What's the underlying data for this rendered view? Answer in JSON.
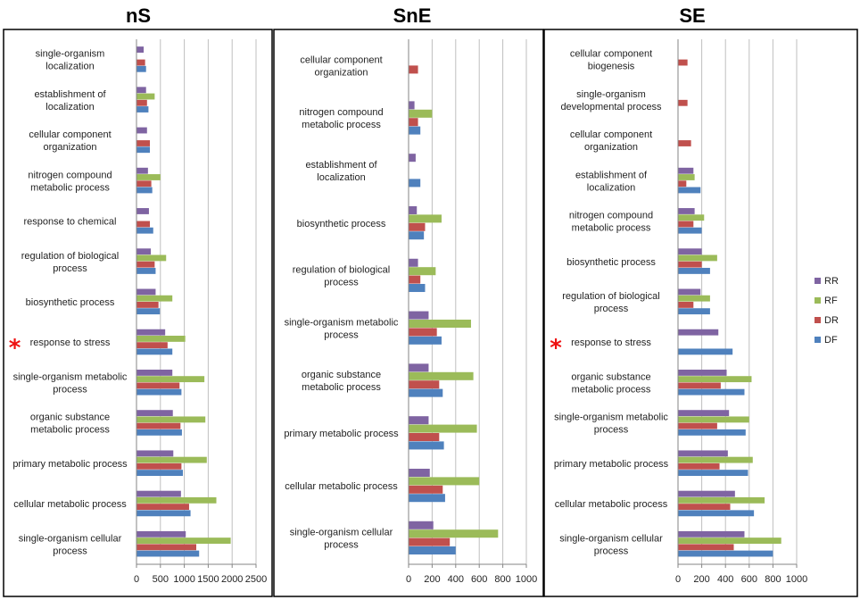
{
  "colors": {
    "RR": "#7f64a2",
    "RF": "#9bbb59",
    "DR": "#c0504d",
    "DF": "#4f81bd",
    "grid": "#bfbfbf",
    "border": "#000000",
    "axis": "#868686",
    "star": "#ee1111"
  },
  "legend": {
    "position": "right",
    "entries": [
      "RR",
      "RF",
      "DR",
      "DF"
    ]
  },
  "highlight_symbol": "*",
  "chart_data": [
    {
      "type": "bar",
      "orientation": "horizontal",
      "title": "nS",
      "xlim": [
        0,
        2500
      ],
      "xticks": [
        0,
        500,
        1000,
        1500,
        2000,
        2500
      ],
      "series_names": [
        "RR",
        "RF",
        "DR",
        "DF"
      ],
      "categories": [
        {
          "label": [
            "single-organism",
            "localization"
          ],
          "starred": false,
          "values": {
            "RR": 150,
            "RF": 0,
            "DR": 180,
            "DF": 200
          }
        },
        {
          "label": [
            "establishment of",
            "localization"
          ],
          "starred": false,
          "values": {
            "RR": 200,
            "RF": 380,
            "DR": 220,
            "DF": 250
          }
        },
        {
          "label": [
            "cellular component",
            "organization"
          ],
          "starred": false,
          "values": {
            "RR": 220,
            "RF": 0,
            "DR": 280,
            "DF": 280
          }
        },
        {
          "label": [
            "nitrogen compound",
            "metabolic process"
          ],
          "starred": false,
          "values": {
            "RR": 240,
            "RF": 500,
            "DR": 310,
            "DF": 330
          }
        },
        {
          "label": [
            "response to chemical"
          ],
          "starred": false,
          "values": {
            "RR": 260,
            "RF": 0,
            "DR": 280,
            "DF": 350
          }
        },
        {
          "label": [
            "regulation of biological",
            "process"
          ],
          "starred": false,
          "values": {
            "RR": 300,
            "RF": 620,
            "DR": 380,
            "DF": 400
          }
        },
        {
          "label": [
            "biosynthetic process"
          ],
          "starred": false,
          "values": {
            "RR": 400,
            "RF": 750,
            "DR": 460,
            "DF": 490
          }
        },
        {
          "label": [
            "response to stress"
          ],
          "starred": true,
          "values": {
            "RR": 600,
            "RF": 1020,
            "DR": 650,
            "DF": 750
          }
        },
        {
          "label": [
            "single-organism metabolic",
            "process"
          ],
          "starred": false,
          "values": {
            "RR": 750,
            "RF": 1420,
            "DR": 900,
            "DF": 940
          }
        },
        {
          "label": [
            "organic substance",
            "metabolic process"
          ],
          "starred": false,
          "values": {
            "RR": 760,
            "RF": 1440,
            "DR": 920,
            "DF": 950
          }
        },
        {
          "label": [
            "primary metabolic process"
          ],
          "starred": false,
          "values": {
            "RR": 770,
            "RF": 1470,
            "DR": 940,
            "DF": 970
          }
        },
        {
          "label": [
            "cellular metabolic process"
          ],
          "starred": false,
          "values": {
            "RR": 930,
            "RF": 1670,
            "DR": 1100,
            "DF": 1130
          }
        },
        {
          "label": [
            "single-organism cellular",
            "process"
          ],
          "starred": false,
          "values": {
            "RR": 1030,
            "RF": 1970,
            "DR": 1250,
            "DF": 1310
          }
        }
      ]
    },
    {
      "type": "bar",
      "orientation": "horizontal",
      "title": "SnE",
      "xlim": [
        0,
        1000
      ],
      "xticks": [
        0,
        200,
        400,
        600,
        800,
        1000
      ],
      "series_names": [
        "RR",
        "RF",
        "DR",
        "DF"
      ],
      "categories": [
        {
          "label": [
            "cellular component",
            "organization"
          ],
          "starred": false,
          "values": {
            "RR": 0,
            "RF": 0,
            "DR": 80,
            "DF": 0
          }
        },
        {
          "label": [
            "nitrogen compound",
            "metabolic process"
          ],
          "starred": false,
          "values": {
            "RR": 50,
            "RF": 200,
            "DR": 80,
            "DF": 100
          }
        },
        {
          "label": [
            "establishment of",
            "localization"
          ],
          "starred": false,
          "values": {
            "RR": 60,
            "RF": 0,
            "DR": 0,
            "DF": 100
          }
        },
        {
          "label": [
            "biosynthetic process"
          ],
          "starred": false,
          "values": {
            "RR": 70,
            "RF": 280,
            "DR": 140,
            "DF": 130
          }
        },
        {
          "label": [
            "regulation of biological",
            "process"
          ],
          "starred": false,
          "values": {
            "RR": 80,
            "RF": 230,
            "DR": 100,
            "DF": 140
          }
        },
        {
          "label": [
            "single-organism metabolic",
            "process"
          ],
          "starred": false,
          "values": {
            "RR": 170,
            "RF": 530,
            "DR": 240,
            "DF": 280
          }
        },
        {
          "label": [
            "organic substance",
            "metabolic process"
          ],
          "starred": false,
          "values": {
            "RR": 170,
            "RF": 550,
            "DR": 260,
            "DF": 290
          }
        },
        {
          "label": [
            "primary metabolic process"
          ],
          "starred": false,
          "values": {
            "RR": 170,
            "RF": 580,
            "DR": 260,
            "DF": 300
          }
        },
        {
          "label": [
            "cellular metabolic process"
          ],
          "starred": false,
          "values": {
            "RR": 180,
            "RF": 600,
            "DR": 290,
            "DF": 310
          }
        },
        {
          "label": [
            "single-organism cellular",
            "process"
          ],
          "starred": false,
          "values": {
            "RR": 210,
            "RF": 760,
            "DR": 350,
            "DF": 400
          }
        }
      ]
    },
    {
      "type": "bar",
      "orientation": "horizontal",
      "title": "SE",
      "xlim": [
        0,
        1000
      ],
      "xticks": [
        0,
        200,
        400,
        600,
        800,
        1000
      ],
      "series_names": [
        "RR",
        "RF",
        "DR",
        "DF"
      ],
      "categories": [
        {
          "label": [
            "cellular component",
            "biogenesis"
          ],
          "starred": false,
          "values": {
            "RR": 0,
            "RF": 0,
            "DR": 80,
            "DF": 0
          }
        },
        {
          "label": [
            "single-organism",
            "developmental process"
          ],
          "starred": false,
          "values": {
            "RR": 0,
            "RF": 0,
            "DR": 80,
            "DF": 0
          }
        },
        {
          "label": [
            "cellular component",
            "organization"
          ],
          "starred": false,
          "values": {
            "RR": 0,
            "RF": 0,
            "DR": 110,
            "DF": 0
          }
        },
        {
          "label": [
            "establishment of",
            "localization"
          ],
          "starred": false,
          "values": {
            "RR": 130,
            "RF": 140,
            "DR": 70,
            "DF": 190
          }
        },
        {
          "label": [
            "nitrogen compound",
            "metabolic process"
          ],
          "starred": false,
          "values": {
            "RR": 140,
            "RF": 220,
            "DR": 130,
            "DF": 200
          }
        },
        {
          "label": [
            "biosynthetic process"
          ],
          "starred": false,
          "values": {
            "RR": 200,
            "RF": 330,
            "DR": 200,
            "DF": 270
          }
        },
        {
          "label": [
            "regulation of biological",
            "process"
          ],
          "starred": false,
          "values": {
            "RR": 190,
            "RF": 270,
            "DR": 130,
            "DF": 270
          }
        },
        {
          "label": [
            "response to stress"
          ],
          "starred": true,
          "values": {
            "RR": 340,
            "RF": 0,
            "DR": 0,
            "DF": 460
          }
        },
        {
          "label": [
            "organic substance",
            "metabolic process"
          ],
          "starred": false,
          "values": {
            "RR": 410,
            "RF": 620,
            "DR": 360,
            "DF": 560
          }
        },
        {
          "label": [
            "single-organism metabolic",
            "process"
          ],
          "starred": false,
          "values": {
            "RR": 430,
            "RF": 600,
            "DR": 330,
            "DF": 570
          }
        },
        {
          "label": [
            "primary metabolic process"
          ],
          "starred": false,
          "values": {
            "RR": 420,
            "RF": 630,
            "DR": 350,
            "DF": 590
          }
        },
        {
          "label": [
            "cellular metabolic process"
          ],
          "starred": false,
          "values": {
            "RR": 480,
            "RF": 730,
            "DR": 440,
            "DF": 640
          }
        },
        {
          "label": [
            "single-organism cellular",
            "process"
          ],
          "starred": false,
          "values": {
            "RR": 560,
            "RF": 870,
            "DR": 470,
            "DF": 800
          }
        }
      ]
    }
  ]
}
